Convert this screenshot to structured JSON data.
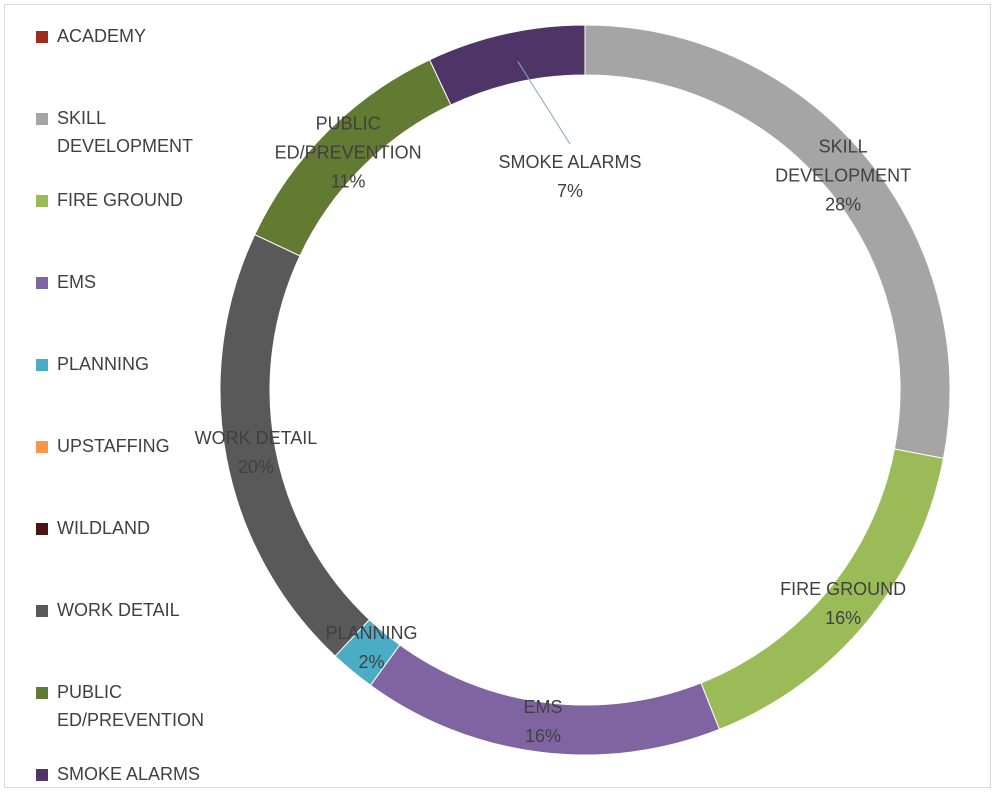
{
  "chart_data": {
    "type": "donut",
    "categories": [
      "ACADEMY",
      "SKILL DEVELOPMENT",
      "FIRE GROUND",
      "EMS",
      "PLANNING",
      "UPSTAFFING",
      "WILDLAND",
      "WORK DETAIL",
      "PUBLIC ED/PREVENTION",
      "SMOKE ALARMS"
    ],
    "values": [
      0,
      28,
      16,
      16,
      2,
      0,
      0,
      20,
      11,
      7
    ],
    "value_labels": [
      null,
      "28%",
      "16%",
      "16%",
      "2%",
      null,
      null,
      "20%",
      "11%",
      "7%"
    ],
    "colors": [
      "#9e2a20",
      "#a5a5a5",
      "#9bbb59",
      "#8064a2",
      "#4bacc6",
      "#f79646",
      "#4a1414",
      "#595959",
      "#627a32",
      "#4f3467"
    ],
    "legend": "left"
  }
}
